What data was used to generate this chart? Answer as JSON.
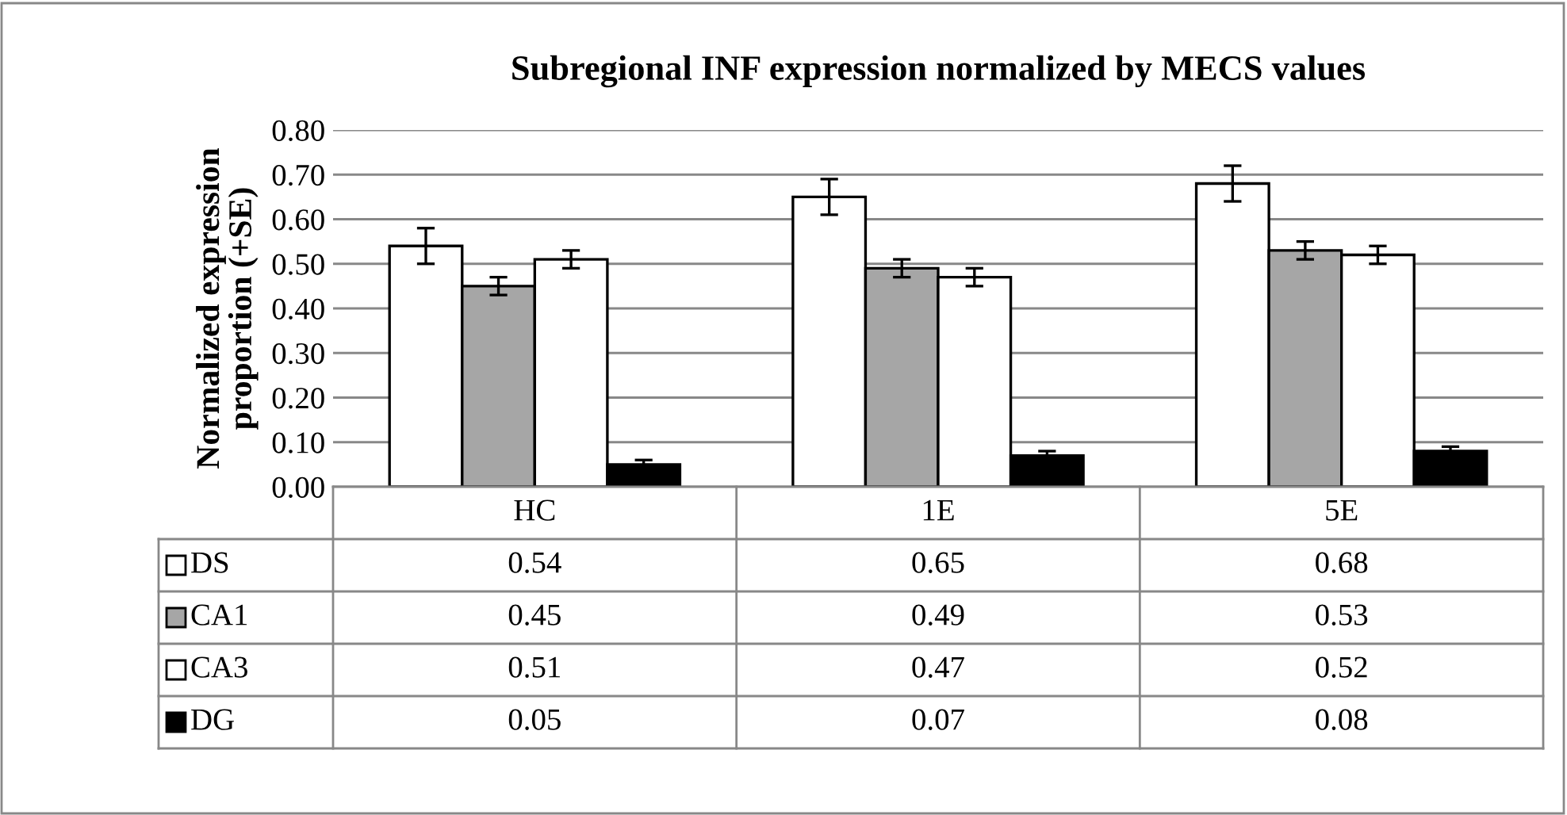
{
  "chart_data": {
    "type": "bar",
    "title": "Subregional INF expression normalized by MECS values",
    "ylabel": "Normalized expression\nproportion (+SE)",
    "categories": [
      "HC",
      "1E",
      "5E"
    ],
    "series": [
      {
        "name": "DS",
        "color": "#ffffff",
        "values": [
          0.54,
          0.65,
          0.68
        ],
        "errors": [
          0.04,
          0.04,
          0.04
        ]
      },
      {
        "name": "CA1",
        "color": "#a6a6a6",
        "values": [
          0.45,
          0.49,
          0.53
        ],
        "errors": [
          0.02,
          0.02,
          0.02
        ]
      },
      {
        "name": "CA3",
        "color": "#ffffff",
        "values": [
          0.51,
          0.47,
          0.52
        ],
        "errors": [
          0.02,
          0.02,
          0.02
        ]
      },
      {
        "name": "DG",
        "color": "#000000",
        "values": [
          0.05,
          0.07,
          0.08
        ],
        "errors": [
          0.01,
          0.01,
          0.01
        ]
      }
    ],
    "ylim": [
      0,
      0.8
    ],
    "yticks": [
      {
        "value": 0,
        "label": "0.00"
      },
      {
        "value": 0.1,
        "label": "0.10"
      },
      {
        "value": 0.2,
        "label": "0.20"
      },
      {
        "value": 0.3,
        "label": "0.30"
      },
      {
        "value": 0.4,
        "label": "0.40"
      },
      {
        "value": 0.5,
        "label": "0.50"
      },
      {
        "value": 0.6,
        "label": "0.60"
      },
      {
        "value": 0.7,
        "label": "0.70"
      },
      {
        "value": 0.8,
        "label": "0.80"
      }
    ],
    "grid": "y",
    "data_labels": true,
    "legend": "bottom"
  }
}
